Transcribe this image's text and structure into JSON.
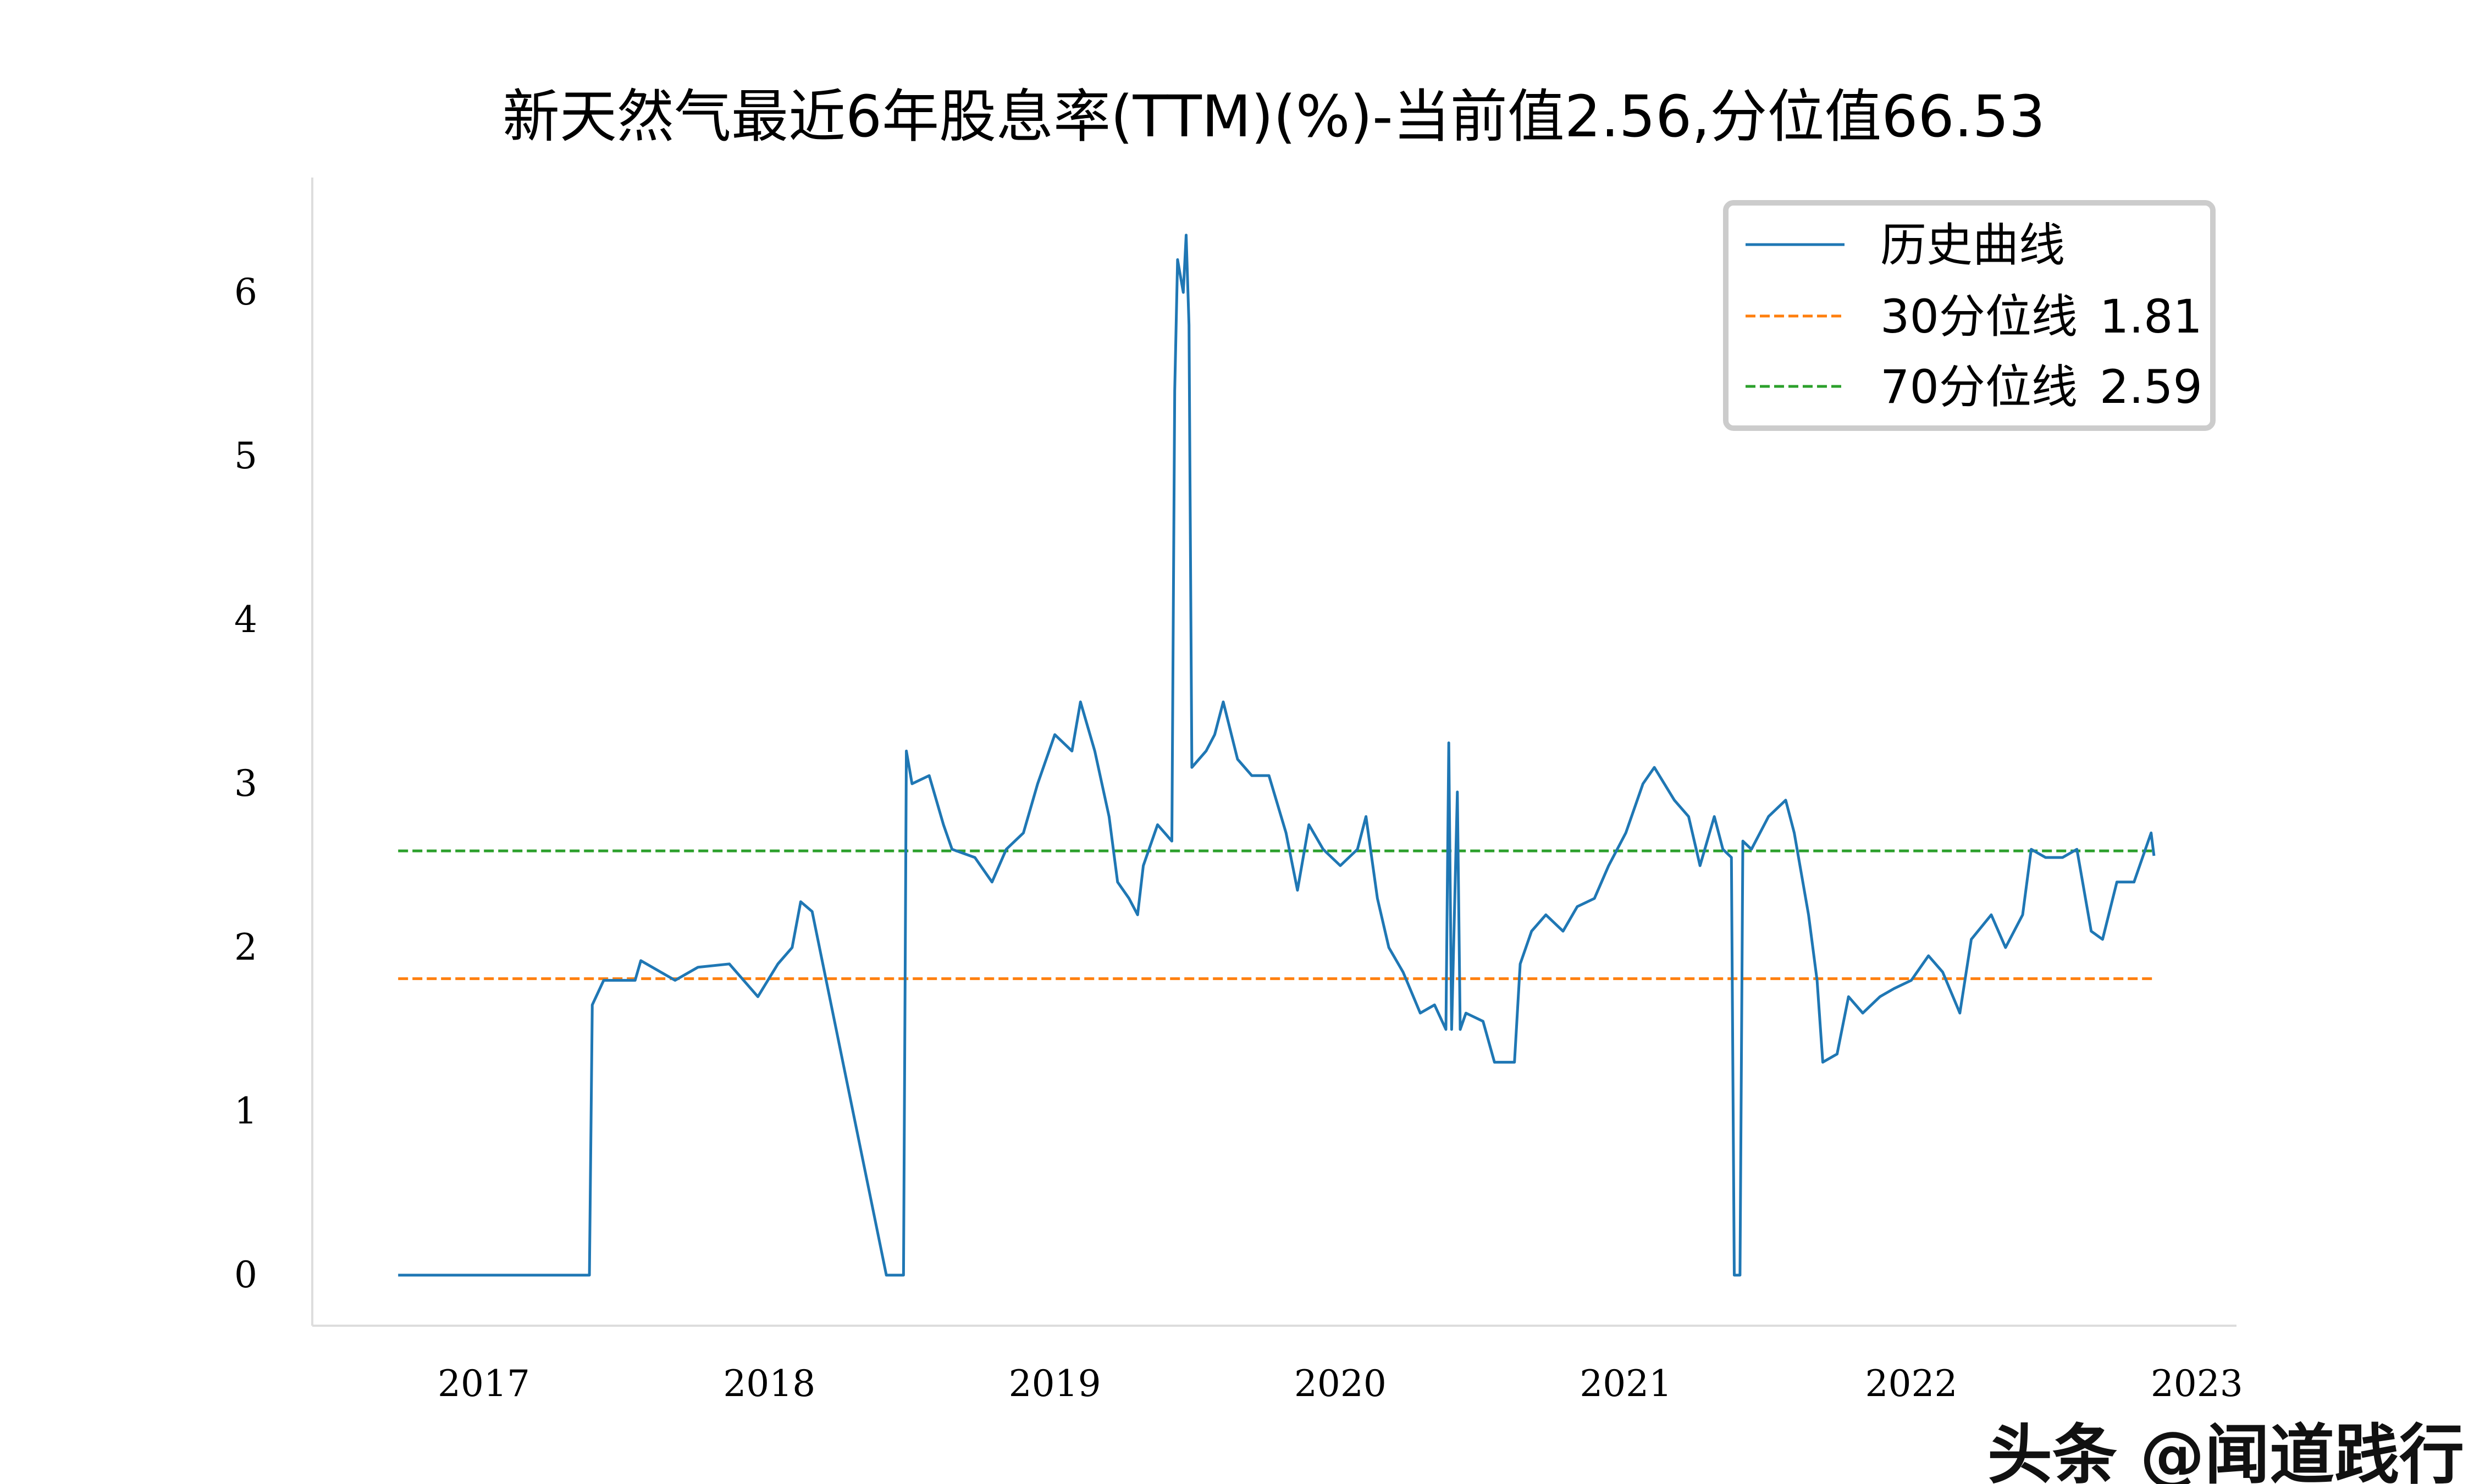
{
  "chart_data": {
    "type": "line",
    "title": "新天然气最近6年股息率(TTM)(%)-当前值2.56,分位值66.53",
    "xlabel": "",
    "ylabel": "",
    "x_ticks": [
      "2017",
      "2018",
      "2019",
      "2020",
      "2021",
      "2022",
      "2023"
    ],
    "y_ticks": [
      "0",
      "1",
      "2",
      "3",
      "4",
      "5",
      "6"
    ],
    "ylim": [
      -0.3,
      6.6
    ],
    "xlim": [
      2016.6,
      2023.2
    ],
    "grid": false,
    "legend_position": "top-right",
    "series": [
      {
        "name": "历史曲线",
        "color": "#1f77b4",
        "style": "solid",
        "x": [
          2016.7,
          2017.37,
          2017.38,
          2017.42,
          2017.53,
          2017.55,
          2017.67,
          2017.75,
          2017.86,
          2017.96,
          2018.03,
          2018.08,
          2018.11,
          2018.15,
          2018.41,
          2018.47,
          2018.48,
          2018.5,
          2018.56,
          2018.61,
          2018.64,
          2018.72,
          2018.78,
          2018.83,
          2018.89,
          2018.94,
          2019.0,
          2019.06,
          2019.09,
          2019.14,
          2019.19,
          2019.22,
          2019.26,
          2019.29,
          2019.31,
          2019.36,
          2019.41,
          2019.42,
          2019.43,
          2019.45,
          2019.46,
          2019.47,
          2019.48,
          2019.53,
          2019.56,
          2019.59,
          2019.64,
          2019.69,
          2019.75,
          2019.81,
          2019.85,
          2019.89,
          2019.94,
          2020.0,
          2020.06,
          2020.09,
          2020.13,
          2020.17,
          2020.22,
          2020.28,
          2020.33,
          2020.37,
          2020.38,
          2020.39,
          2020.41,
          2020.42,
          2020.44,
          2020.5,
          2020.54,
          2020.61,
          2020.63,
          2020.67,
          2020.72,
          2020.78,
          2020.83,
          2020.89,
          2020.94,
          2021.0,
          2021.06,
          2021.1,
          2021.17,
          2021.22,
          2021.26,
          2021.31,
          2021.34,
          2021.37,
          2021.38,
          2021.4,
          2021.41,
          2021.44,
          2021.5,
          2021.56,
          2021.59,
          2021.64,
          2021.67,
          2021.69,
          2021.74,
          2021.78,
          2021.83,
          2021.89,
          2021.94,
          2022.0,
          2022.06,
          2022.11,
          2022.17,
          2022.21,
          2022.28,
          2022.33,
          2022.39,
          2022.42,
          2022.47,
          2022.53,
          2022.58,
          2022.63,
          2022.67,
          2022.72,
          2022.78,
          2022.81,
          2022.84,
          2022.85
        ],
        "y": [
          0,
          0,
          1.65,
          1.8,
          1.8,
          1.92,
          1.8,
          1.88,
          1.9,
          1.7,
          1.9,
          2.0,
          2.28,
          2.22,
          0,
          0,
          3.2,
          3.0,
          3.05,
          2.75,
          2.6,
          2.55,
          2.4,
          2.6,
          2.7,
          3.0,
          3.3,
          3.2,
          3.5,
          3.2,
          2.8,
          2.4,
          2.3,
          2.2,
          2.5,
          2.75,
          2.65,
          5.4,
          6.2,
          6.0,
          6.35,
          5.8,
          3.1,
          3.2,
          3.3,
          3.5,
          3.15,
          3.05,
          3.05,
          2.7,
          2.35,
          2.75,
          2.6,
          2.5,
          2.6,
          2.8,
          2.3,
          2.0,
          1.85,
          1.6,
          1.65,
          1.5,
          3.25,
          1.5,
          2.95,
          1.5,
          1.6,
          1.55,
          1.3,
          1.3,
          1.9,
          2.1,
          2.2,
          2.1,
          2.25,
          2.3,
          2.5,
          2.7,
          3.0,
          3.1,
          2.9,
          2.8,
          2.5,
          2.8,
          2.6,
          2.55,
          0,
          0,
          2.65,
          2.6,
          2.8,
          2.9,
          2.7,
          2.2,
          1.8,
          1.3,
          1.35,
          1.7,
          1.6,
          1.7,
          1.75,
          1.8,
          1.95,
          1.85,
          1.6,
          2.05,
          2.2,
          2.0,
          2.2,
          2.6,
          2.55,
          2.55,
          2.6,
          2.1,
          2.05,
          2.4,
          2.4,
          2.55,
          2.7,
          2.56
        ]
      },
      {
        "name": "30分位线",
        "label_value": "1.81",
        "value": 1.81,
        "color": "#ff7f0e",
        "style": "dashed"
      },
      {
        "name": "70分位线",
        "label_value": "2.59",
        "value": 2.59,
        "color": "#2ca02c",
        "style": "dashed"
      }
    ]
  },
  "watermark": "头条 @闻道践行"
}
